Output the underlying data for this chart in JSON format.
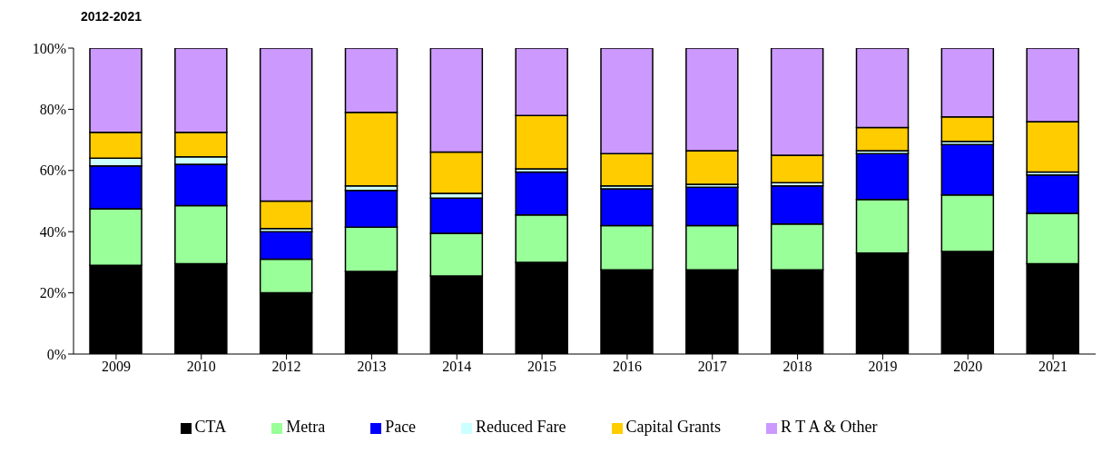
{
  "chart_data": {
    "type": "bar",
    "title": "2012-2021",
    "stacked": true,
    "legend": "bottom",
    "grid": false,
    "categories": [
      "2009",
      "2010",
      "2012",
      "2013",
      "2014",
      "2015",
      "2016",
      "2017",
      "2018",
      "2019",
      "2020",
      "2021"
    ],
    "ylim": [
      0,
      100
    ],
    "yticks": [
      {
        "value": 0,
        "label": "0%"
      },
      {
        "value": 20,
        "label": "20%"
      },
      {
        "value": 40,
        "label": "40%"
      },
      {
        "value": 60,
        "label": "60%"
      },
      {
        "value": 80,
        "label": "80%"
      },
      {
        "value": 100,
        "label": "100%"
      }
    ],
    "series": [
      {
        "name": "CTA",
        "color": "#000000",
        "values": [
          29,
          29.5,
          20,
          27,
          25.5,
          30,
          27.5,
          27.5,
          27.5,
          33,
          33.5,
          29.5
        ]
      },
      {
        "name": "Metra",
        "color": "#99ff99",
        "values": [
          18.5,
          19,
          11,
          14.5,
          14,
          15.5,
          14.5,
          14.5,
          15,
          17.5,
          18.5,
          16.5
        ]
      },
      {
        "name": "Pace",
        "color": "#0000ff",
        "values": [
          14,
          13.5,
          9,
          12,
          11.5,
          14,
          12,
          12.5,
          12.5,
          15,
          16.5,
          12.5
        ]
      },
      {
        "name": "Reduced Fare",
        "color": "#ccffff",
        "values": [
          2.5,
          2.5,
          1,
          1.5,
          1.5,
          1,
          1,
          1,
          1,
          1,
          1,
          1
        ]
      },
      {
        "name": "Capital Grants",
        "color": "#ffcc00",
        "values": [
          8.5,
          8,
          9,
          24,
          13.5,
          17.5,
          10.5,
          11,
          9,
          7.5,
          8,
          16.5
        ]
      },
      {
        "name": "R T A & Other",
        "color": "#cc99ff",
        "values": [
          27.5,
          27.5,
          50,
          21,
          34,
          22,
          34.5,
          33.5,
          35,
          26,
          22.5,
          24
        ]
      }
    ]
  }
}
